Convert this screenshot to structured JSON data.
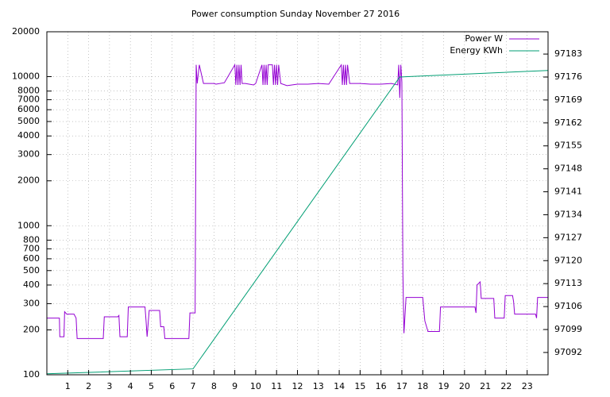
{
  "chart_data": {
    "type": "line",
    "title": "Power consumption Sunday November 27 2016",
    "xlim": [
      0,
      24
    ],
    "xticks": [
      1,
      2,
      3,
      4,
      5,
      6,
      7,
      8,
      9,
      10,
      11,
      12,
      13,
      14,
      15,
      16,
      17,
      18,
      19,
      20,
      21,
      22,
      23
    ],
    "ylim": [
      100,
      20000
    ],
    "log_y": true,
    "yticks": [
      100,
      200,
      300,
      400,
      500,
      600,
      700,
      800,
      1000,
      2000,
      3000,
      4000,
      5000,
      6000,
      7000,
      8000,
      10000,
      20000
    ],
    "y2lim": [
      97085.2,
      97189.8
    ],
    "y2ticks": [
      97092,
      97099,
      97106,
      97113,
      97120,
      97127,
      97134,
      97141,
      97148,
      97155,
      97162,
      97169,
      97176,
      97183
    ],
    "grid": true,
    "legend": "top right",
    "series": [
      {
        "name": "Power W",
        "color": "#9400d3",
        "x": [
          0,
          0.6,
          0.62,
          0.82,
          0.85,
          0.95,
          1.3,
          1.4,
          1.45,
          2.7,
          2.75,
          3.4,
          3.45,
          3.5,
          3.85,
          3.9,
          4.7,
          4.75,
          4.8,
          4.9,
          5.4,
          5.45,
          5.6,
          5.65,
          6.8,
          6.85,
          7.1,
          7.15,
          7.2,
          7.3,
          7.5,
          8.0,
          8.1,
          8.5,
          9.0,
          9.05,
          9.1,
          9.15,
          9.2,
          9.25,
          9.3,
          9.35,
          9.5,
          9.9,
          10.0,
          10.3,
          10.35,
          10.4,
          10.45,
          10.5,
          10.55,
          10.6,
          10.8,
          10.85,
          10.9,
          10.95,
          11.0,
          11.05,
          11.1,
          11.2,
          11.5,
          12.0,
          12.5,
          13.0,
          13.5,
          14.1,
          14.15,
          14.2,
          14.25,
          14.3,
          14.35,
          14.4,
          14.5,
          15.0,
          15.5,
          16.0,
          16.5,
          16.8,
          16.85,
          16.9,
          16.95,
          17.0,
          17.05,
          17.1,
          17.2,
          18.0,
          18.1,
          18.25,
          18.8,
          18.85,
          20.5,
          20.55,
          20.6,
          20.75,
          20.8,
          21.4,
          21.45,
          21.9,
          21.95,
          22.3,
          22.35,
          22.4,
          23.4,
          23.45,
          23.5,
          24
        ],
        "values": [
          240,
          240,
          180,
          180,
          265,
          255,
          255,
          240,
          175,
          175,
          245,
          245,
          250,
          180,
          180,
          285,
          285,
          230,
          180,
          270,
          270,
          210,
          210,
          175,
          175,
          260,
          260,
          12000,
          9000,
          12000,
          9000,
          9000,
          8900,
          9100,
          12000,
          8800,
          12000,
          8800,
          12000,
          8800,
          12000,
          9000,
          9000,
          8800,
          9000,
          12000,
          8800,
          12000,
          8800,
          12000,
          8800,
          12000,
          12000,
          8800,
          12000,
          8800,
          12000,
          8800,
          12000,
          9000,
          8700,
          8900,
          8900,
          9000,
          8900,
          12000,
          8800,
          12000,
          8800,
          12000,
          8800,
          12000,
          9000,
          9000,
          8900,
          8900,
          9000,
          8800,
          12000,
          7200,
          12000,
          9200,
          470,
          190,
          330,
          330,
          230,
          195,
          195,
          285,
          285,
          260,
          400,
          420,
          325,
          325,
          240,
          240,
          340,
          340,
          310,
          255,
          255,
          240,
          330,
          330
        ]
      },
      {
        "name": "Energy KWh",
        "color": "#009e73",
        "axis": "y2",
        "x": [
          0,
          7,
          16.9,
          24
        ],
        "values": [
          97085.5,
          97087,
          97176,
          97178
        ]
      }
    ]
  }
}
